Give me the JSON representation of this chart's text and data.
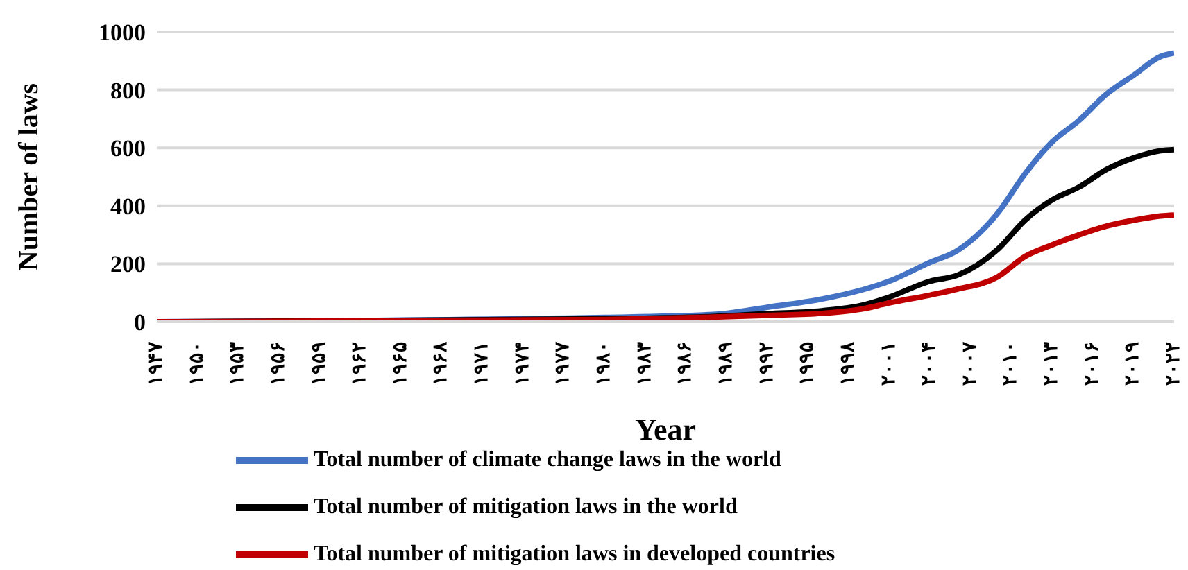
{
  "chart_data": {
    "type": "line",
    "xlabel": "Year",
    "ylabel": "Number of laws",
    "x": [
      1947,
      1980,
      1988,
      1992,
      1996,
      1999,
      2001,
      2004,
      2006,
      2009,
      2011,
      2013,
      2015,
      2017,
      2019,
      2021,
      2022
    ],
    "series": [
      {
        "name": "Total number of climate change laws in the world",
        "color": "#4472c4",
        "values": [
          0,
          15,
          25,
          50,
          78,
          110,
          140,
          205,
          245,
          375,
          510,
          620,
          695,
          785,
          850,
          915,
          927
        ]
      },
      {
        "name": "Total number of mitigation laws in the world",
        "color": "#000000",
        "values": [
          0,
          10,
          18,
          28,
          38,
          57,
          85,
          140,
          160,
          250,
          350,
          420,
          465,
          525,
          565,
          590,
          594
        ]
      },
      {
        "name": "Total number of mitigation laws in developed countries",
        "color": "#c00000",
        "values": [
          0,
          8,
          16,
          22,
          29,
          44,
          65,
          92,
          112,
          155,
          225,
          265,
          300,
          330,
          350,
          365,
          368
        ]
      }
    ],
    "xlim": [
      1947,
      2022
    ],
    "xticks": [
      {
        "value": 1947,
        "label": "۱۹۴۷"
      },
      {
        "value": 1950,
        "label": "۱۹۵۰"
      },
      {
        "value": 1953,
        "label": "۱۹۵۳"
      },
      {
        "value": 1956,
        "label": "۱۹۵۶"
      },
      {
        "value": 1959,
        "label": "۱۹۵۹"
      },
      {
        "value": 1962,
        "label": "۱۹۶۲"
      },
      {
        "value": 1965,
        "label": "۱۹۶۵"
      },
      {
        "value": 1968,
        "label": "۱۹۶۸"
      },
      {
        "value": 1971,
        "label": "۱۹۷۱"
      },
      {
        "value": 1974,
        "label": "۱۹۷۴"
      },
      {
        "value": 1977,
        "label": "۱۹۷۷"
      },
      {
        "value": 1980,
        "label": "۱۹۸۰"
      },
      {
        "value": 1983,
        "label": "۱۹۸۳"
      },
      {
        "value": 1986,
        "label": "۱۹۸۶"
      },
      {
        "value": 1989,
        "label": "۱۹۸۹"
      },
      {
        "value": 1992,
        "label": "۱۹۹۲"
      },
      {
        "value": 1995,
        "label": "۱۹۹۵"
      },
      {
        "value": 1998,
        "label": "۱۹۹۸"
      },
      {
        "value": 2001,
        "label": "۲۰۰۱"
      },
      {
        "value": 2004,
        "label": "۲۰۰۴"
      },
      {
        "value": 2007,
        "label": "۲۰۰۷"
      },
      {
        "value": 2010,
        "label": "۲۰۱۰"
      },
      {
        "value": 2013,
        "label": "۲۰۱۳"
      },
      {
        "value": 2016,
        "label": "۲۰۱۶"
      },
      {
        "value": 2019,
        "label": "۲۰۱۹"
      },
      {
        "value": 2022,
        "label": "۲۰۲۲"
      }
    ],
    "ylim": [
      0,
      1000
    ],
    "yticks": [
      0,
      200,
      400,
      600,
      800,
      1000
    ],
    "grid": "y",
    "legend": "bottom",
    "marker": "none",
    "line_style": "solid"
  }
}
